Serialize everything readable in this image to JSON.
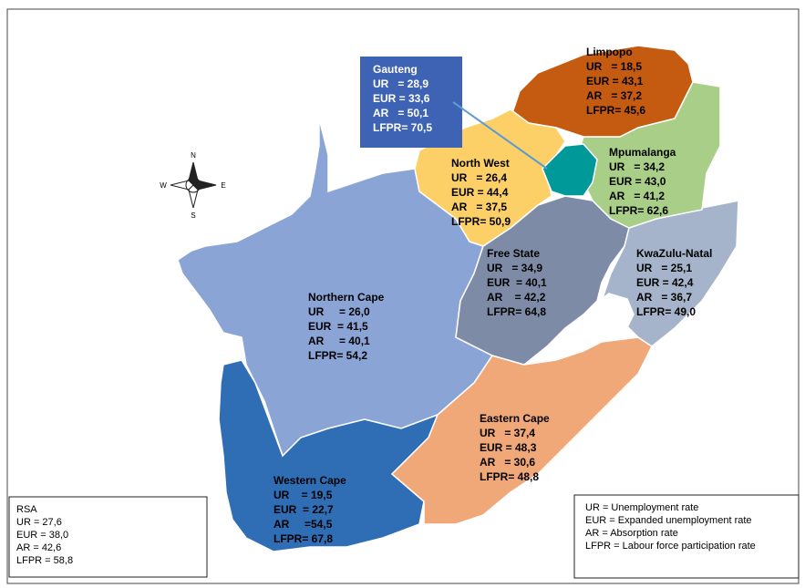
{
  "regions": [
    {
      "name": "Limpopo",
      "lines": [
        "UR   = 18,5",
        "EUR = 43,1",
        "AR   = 37,2",
        "LFPR= 45,6"
      ]
    },
    {
      "name": "Gauteng",
      "lines": [
        "UR   = 28,9",
        "EUR = 33,6",
        "AR   = 50,1",
        "LFPR= 70,5"
      ]
    },
    {
      "name": "North West",
      "lines": [
        "UR   = 26,4",
        "EUR = 44,4",
        "AR   = 37,5",
        "LFPR= 50,9"
      ]
    },
    {
      "name": "Mpumalanga",
      "lines": [
        "UR   = 34,2",
        "EUR = 43,0",
        "AR   = 41,2",
        "LFPR= 62,6"
      ]
    },
    {
      "name": "Free State",
      "lines": [
        "UR   = 34,9",
        "EUR  = 40,1",
        "AR    = 42,2",
        "LFPR= 64,8"
      ]
    },
    {
      "name": "KwaZulu-Natal",
      "lines": [
        "UR   = 25,1",
        "EUR = 42,4",
        "AR   = 36,7",
        "LFPR= 49,0"
      ]
    },
    {
      "name": "Northern Cape",
      "lines": [
        "UR     = 26,0",
        "EUR  = 41,5",
        "AR     = 40,1",
        "LFPR= 54,2"
      ]
    },
    {
      "name": "Eastern Cape",
      "lines": [
        "UR   = 37,4",
        "EUR = 48,3",
        "AR   = 30,6",
        "LFPR= 48,8"
      ]
    },
    {
      "name": "Western Cape",
      "lines": [
        "UR    = 19,5",
        "EUR  = 22,7",
        "AR     =54,5",
        "LFPR= 67,8"
      ]
    }
  ],
  "summary": {
    "title": "RSA",
    "lines": [
      "UR = 27,6",
      "EUR = 38,0",
      "AR = 42,6",
      "LFPR = 58,8"
    ]
  },
  "legend": {
    "lines": [
      "UR = Unemployment rate",
      "EUR = Expanded unemployment rate",
      "AR = Absorption rate",
      "LFPR = Labour force participation rate"
    ]
  },
  "compass": {
    "north": "N",
    "south": "S",
    "east": "E",
    "west": "W"
  }
}
